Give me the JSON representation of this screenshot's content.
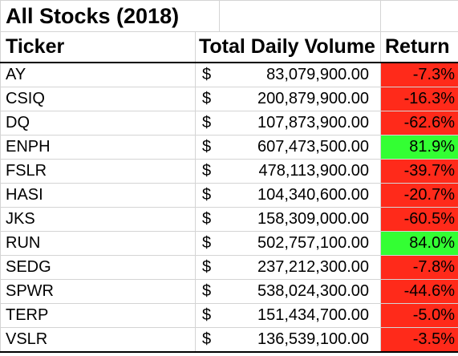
{
  "sheet": {
    "title": "All Stocks (2018)",
    "headers": {
      "ticker": "Ticker",
      "volume": "Total Daily Volume",
      "return": "Return"
    },
    "currency_symbol": "$",
    "colors": {
      "negative_fill": "#ff2a1a",
      "positive_fill": "#33ff33",
      "gridline": "#d4d4d4"
    },
    "rows": [
      {
        "ticker": "AY",
        "volume": "83,079,900.00",
        "return": "-7.3%",
        "status": "negative"
      },
      {
        "ticker": "CSIQ",
        "volume": "200,879,900.00",
        "return": "-16.3%",
        "status": "negative"
      },
      {
        "ticker": "DQ",
        "volume": "107,873,900.00",
        "return": "-62.6%",
        "status": "negative"
      },
      {
        "ticker": "ENPH",
        "volume": "607,473,500.00",
        "return": "81.9%",
        "status": "positive"
      },
      {
        "ticker": "FSLR",
        "volume": "478,113,900.00",
        "return": "-39.7%",
        "status": "negative"
      },
      {
        "ticker": "HASI",
        "volume": "104,340,600.00",
        "return": "-20.7%",
        "status": "negative"
      },
      {
        "ticker": "JKS",
        "volume": "158,309,000.00",
        "return": "-60.5%",
        "status": "negative"
      },
      {
        "ticker": "RUN",
        "volume": "502,757,100.00",
        "return": "84.0%",
        "status": "positive"
      },
      {
        "ticker": "SEDG",
        "volume": "237,212,300.00",
        "return": "-7.8%",
        "status": "negative"
      },
      {
        "ticker": "SPWR",
        "volume": "538,024,300.00",
        "return": "-44.6%",
        "status": "negative"
      },
      {
        "ticker": "TERP",
        "volume": "151,434,700.00",
        "return": "-5.0%",
        "status": "negative"
      },
      {
        "ticker": "VSLR",
        "volume": "136,539,100.00",
        "return": "-3.5%",
        "status": "negative"
      }
    ]
  }
}
